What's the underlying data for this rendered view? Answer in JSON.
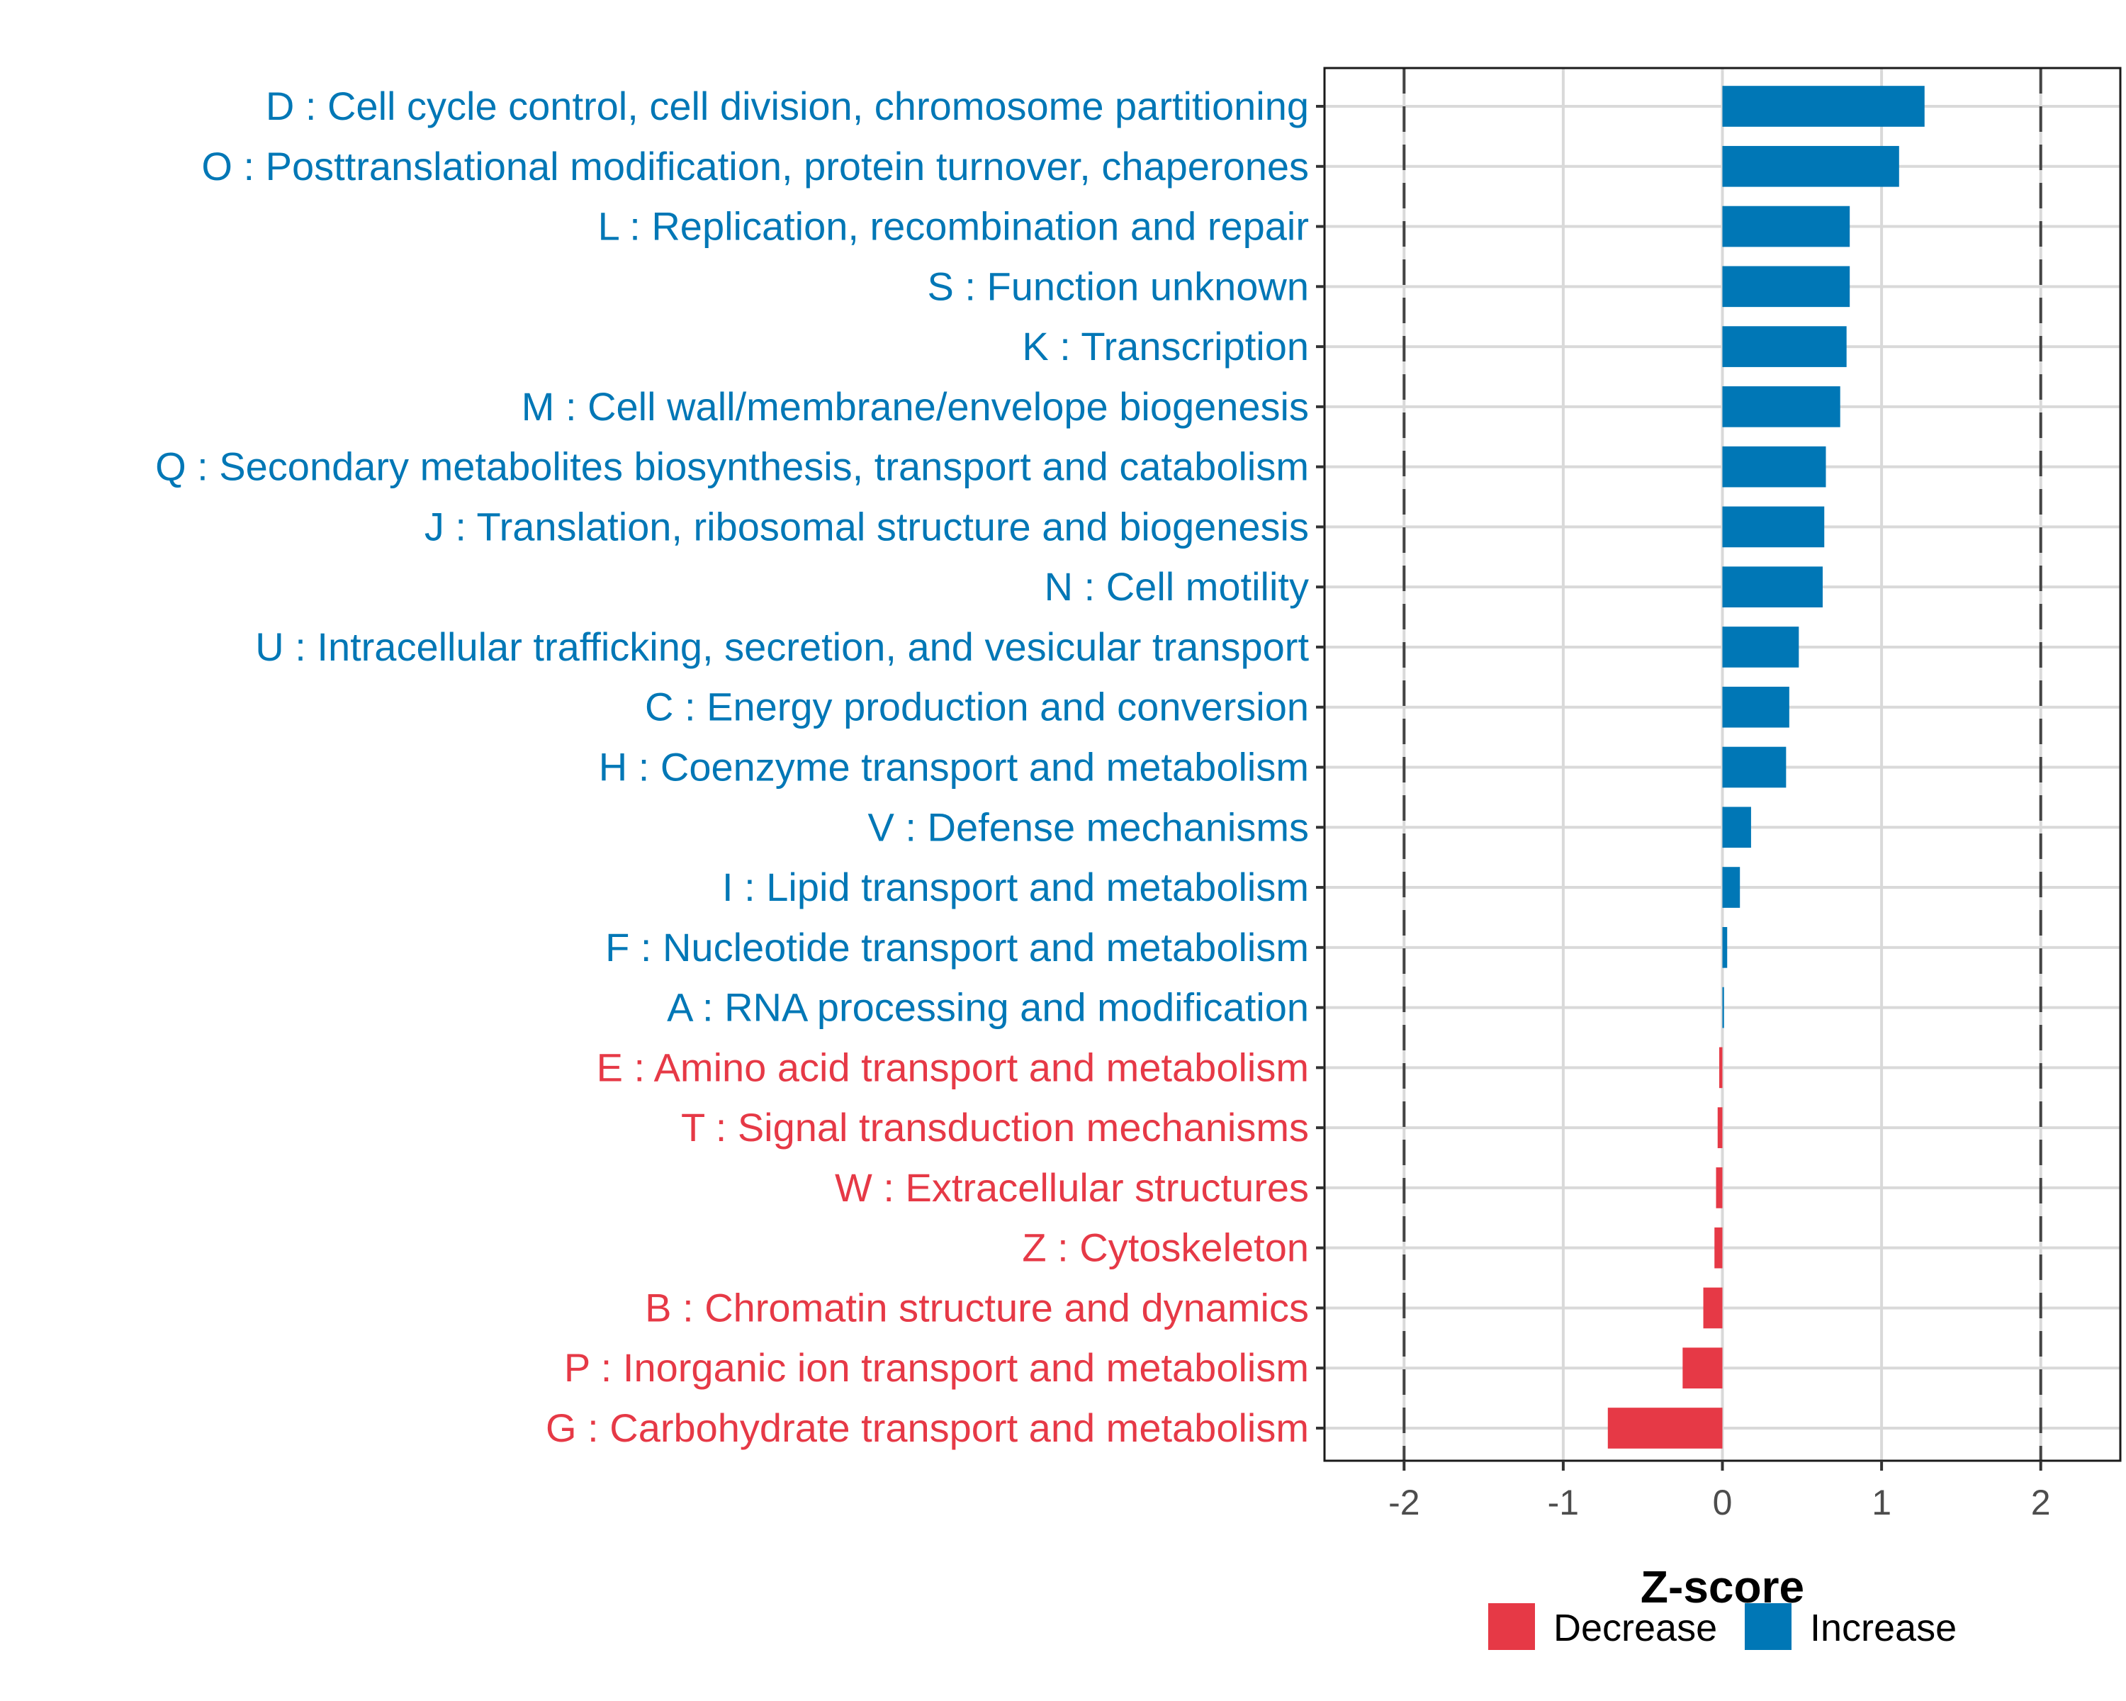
{
  "chart_data": {
    "type": "bar",
    "orientation": "horizontal",
    "title": "",
    "xlabel": "Z-score",
    "ylabel": "",
    "xlim": [
      -2.5,
      2.5
    ],
    "xticks": [
      -2,
      -1,
      0,
      1,
      2
    ],
    "xtick_labels": [
      "-2",
      "-1",
      "0",
      "1",
      "2"
    ],
    "reference_lines": [
      -2,
      2
    ],
    "grid": true,
    "legend_position": "bottom",
    "colors": {
      "Decrease": "#E63946",
      "Increase": "#0077B6"
    },
    "legend": [
      {
        "label": "Decrease",
        "color": "#E63946"
      },
      {
        "label": "Increase",
        "color": "#0077B6"
      }
    ],
    "categories": [
      "D : Cell cycle control, cell division, chromosome partitioning",
      "O : Posttranslational modification, protein turnover, chaperones",
      "L : Replication, recombination and repair",
      "S : Function unknown",
      "K : Transcription",
      "M : Cell wall/membrane/envelope biogenesis",
      "Q : Secondary metabolites biosynthesis, transport and catabolism",
      "J : Translation, ribosomal structure and biogenesis",
      "N : Cell motility",
      "U : Intracellular trafficking, secretion, and vesicular transport",
      "C : Energy production and conversion",
      "H : Coenzyme transport and metabolism",
      "V : Defense mechanisms",
      "I : Lipid transport and metabolism",
      "F : Nucleotide transport and metabolism",
      "A : RNA processing and modification",
      "E : Amino acid transport and metabolism",
      "T : Signal transduction mechanisms",
      "W : Extracellular structures",
      "Z : Cytoskeleton",
      "B : Chromatin structure and dynamics",
      "P : Inorganic ion transport and metabolism",
      "G : Carbohydrate transport and metabolism"
    ],
    "values": [
      1.27,
      1.11,
      0.8,
      0.8,
      0.78,
      0.74,
      0.65,
      0.64,
      0.63,
      0.48,
      0.42,
      0.4,
      0.18,
      0.11,
      0.03,
      0.01,
      -0.02,
      -0.03,
      -0.04,
      -0.05,
      -0.12,
      -0.25,
      -0.72
    ],
    "direction": [
      "Increase",
      "Increase",
      "Increase",
      "Increase",
      "Increase",
      "Increase",
      "Increase",
      "Increase",
      "Increase",
      "Increase",
      "Increase",
      "Increase",
      "Increase",
      "Increase",
      "Increase",
      "Increase",
      "Decrease",
      "Decrease",
      "Decrease",
      "Decrease",
      "Decrease",
      "Decrease",
      "Decrease"
    ]
  }
}
